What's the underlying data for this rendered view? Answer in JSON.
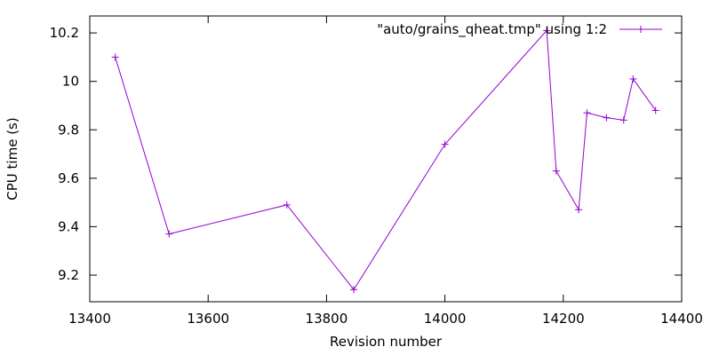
{
  "chart_data": {
    "type": "line",
    "title": "",
    "xlabel": "Revision number",
    "ylabel": "CPU time (s)",
    "xlim": [
      13400,
      14400
    ],
    "ylim": [
      9.09,
      10.27
    ],
    "x_ticks": [
      13400,
      13600,
      13800,
      14000,
      14200,
      14400
    ],
    "y_ticks": [
      9.2,
      9.4,
      9.6,
      9.8,
      10,
      10.2
    ],
    "x_tick_labels": [
      "13400",
      "13600",
      "13800",
      "14000",
      "14200",
      "14400"
    ],
    "y_tick_labels": [
      "9.2",
      "9.4",
      "9.6",
      "9.8",
      "10",
      "10.2"
    ],
    "grid": false,
    "legend_position": "top-right",
    "series": [
      {
        "name": "\"auto/grains_qheat.tmp\" using 1:2",
        "color": "#9400d3",
        "marker": "plus",
        "x": [
          13443,
          13534,
          13733,
          13846,
          14000,
          14172,
          14188,
          14226,
          14240,
          14273,
          14302,
          14318,
          14356
        ],
        "y": [
          10.1,
          9.37,
          9.49,
          9.14,
          9.74,
          10.21,
          9.63,
          9.47,
          9.87,
          9.85,
          9.84,
          10.01,
          9.88
        ]
      }
    ]
  }
}
